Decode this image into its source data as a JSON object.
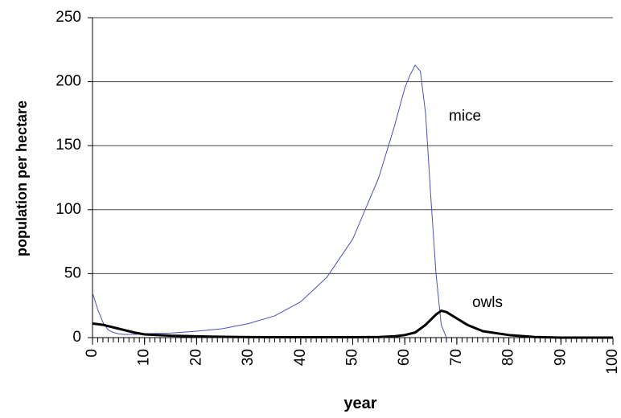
{
  "chart_data": {
    "type": "line",
    "x_label": "year",
    "y_label": "population per hectare",
    "x": [
      0,
      1,
      2,
      3,
      4,
      5,
      6,
      8,
      10,
      15,
      20,
      25,
      30,
      35,
      40,
      45,
      50,
      55,
      58,
      60,
      61,
      62,
      63,
      64,
      65,
      66,
      67,
      68,
      70,
      72,
      75,
      80,
      85,
      90,
      95,
      100
    ],
    "series": [
      {
        "name": "mice",
        "color": "#4a52b8",
        "width": 1,
        "values": [
          35,
          22,
          12,
          6,
          4,
          3,
          2.5,
          2.5,
          3,
          3.5,
          5,
          7,
          11,
          17,
          28,
          47,
          77,
          125,
          165,
          195,
          205,
          213,
          208,
          175,
          110,
          50,
          10,
          0,
          null,
          null,
          null,
          null,
          null,
          null,
          null,
          null
        ]
      },
      {
        "name": "owls",
        "color": "#000000",
        "width": 3,
        "values": [
          11,
          10.5,
          10,
          9,
          8,
          7,
          6,
          4,
          2.5,
          1.5,
          1,
          0.6,
          0.4,
          0.3,
          0.3,
          0.3,
          0.3,
          0.5,
          1,
          2,
          3,
          4,
          7,
          10,
          14,
          18,
          21,
          20,
          15,
          10,
          5,
          2,
          0.5,
          0,
          0,
          0
        ]
      }
    ],
    "xlim": [
      0,
      100
    ],
    "xticks": [
      0,
      10,
      20,
      30,
      40,
      50,
      60,
      70,
      80,
      90,
      100
    ],
    "ylim": [
      0,
      250
    ],
    "yticks": [
      0,
      50,
      100,
      150,
      200,
      250
    ],
    "grid": true
  }
}
